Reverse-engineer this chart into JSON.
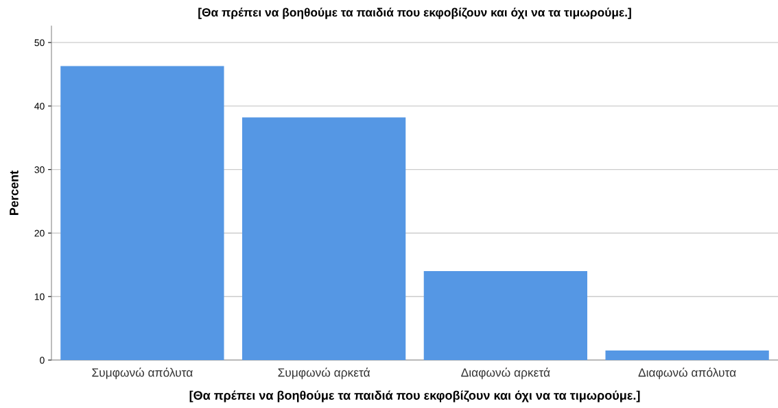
{
  "chart_data": {
    "type": "bar",
    "title": "[Θα πρέπει να βοηθούμε τα παιδιά που εκφοβίζουν και όχι να τα τιμωρούμε.]",
    "xlabel": "[Θα πρέπει να βοηθούμε τα παιδιά που εκφοβίζουν και όχι να τα τιμωρούμε.]",
    "ylabel": "Percent",
    "categories": [
      "Συμφωνώ απόλυτα",
      "Συμφωνώ αρκετά",
      "Διαφωνώ αρκετά",
      "Διαφωνώ απόλυτα"
    ],
    "values": [
      46.3,
      38.2,
      14.0,
      1.5
    ],
    "color": "#5597e4",
    "ylim": [
      0,
      52.6
    ],
    "yticks": [
      0,
      10,
      20,
      30,
      40,
      50
    ],
    "grid": "y"
  }
}
